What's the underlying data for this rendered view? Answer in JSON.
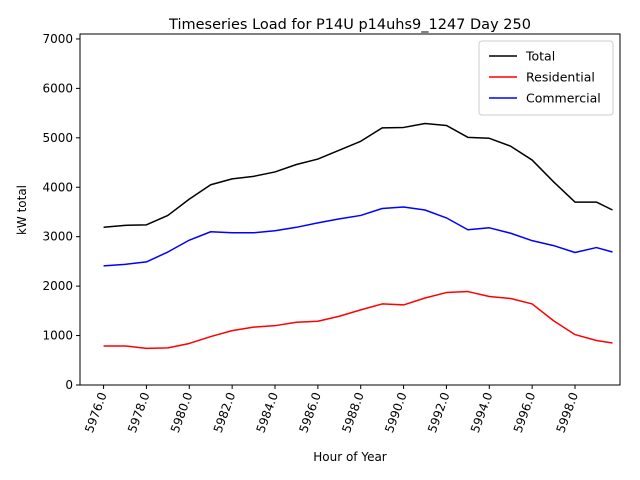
{
  "chart_data": {
    "type": "line",
    "title": "Timeseries Load for P14U p14uhs9_1247  Day 250",
    "xlabel": "Hour of Year",
    "ylabel": "kW total",
    "xlim": [
      5974.9,
      6000.1
    ],
    "ylim": [
      0,
      7100
    ],
    "x_ticks": [
      5976,
      5978,
      5980,
      5982,
      5984,
      5986,
      5988,
      5990,
      5992,
      5994,
      5996,
      5998
    ],
    "x_tick_labels": [
      "5976.0",
      "5978.0",
      "5980.0",
      "5982.0",
      "5984.0",
      "5986.0",
      "5988.0",
      "5990.0",
      "5992.0",
      "5994.0",
      "5996.0",
      "5998.0"
    ],
    "y_ticks": [
      0,
      1000,
      2000,
      3000,
      4000,
      5000,
      6000,
      7000
    ],
    "y_tick_labels": [
      "0",
      "1000",
      "2000",
      "3000",
      "4000",
      "5000",
      "6000",
      "7000"
    ],
    "grid": false,
    "legend_position": "top-right",
    "x": [
      5976,
      5977,
      5978,
      5979,
      5980,
      5981,
      5982,
      5983,
      5984,
      5985,
      5986,
      5987,
      5988,
      5989,
      5990,
      5991,
      5992,
      5993,
      5994,
      5995,
      5996,
      5997,
      5998,
      5999,
      5999.75
    ],
    "series": [
      {
        "name": "Total",
        "color": "#000000",
        "values": [
          3190,
          3230,
          3240,
          3430,
          3760,
          4050,
          4170,
          4220,
          4310,
          4460,
          4570,
          4750,
          4930,
          5200,
          5210,
          5290,
          5250,
          5010,
          4990,
          4830,
          4550,
          4110,
          3700,
          3700,
          3540
        ]
      },
      {
        "name": "Residential",
        "color": "#ff0000",
        "values": [
          790,
          790,
          740,
          750,
          840,
          980,
          1100,
          1170,
          1200,
          1270,
          1290,
          1390,
          1520,
          1640,
          1620,
          1760,
          1870,
          1890,
          1790,
          1750,
          1640,
          1300,
          1020,
          900,
          850
        ]
      },
      {
        "name": "Commercial",
        "color": "#0000ff",
        "values": [
          2410,
          2440,
          2490,
          2690,
          2930,
          3100,
          3080,
          3080,
          3120,
          3190,
          3280,
          3360,
          3430,
          3570,
          3600,
          3540,
          3380,
          3140,
          3180,
          3070,
          2920,
          2820,
          2680,
          2780,
          2690
        ]
      }
    ]
  }
}
